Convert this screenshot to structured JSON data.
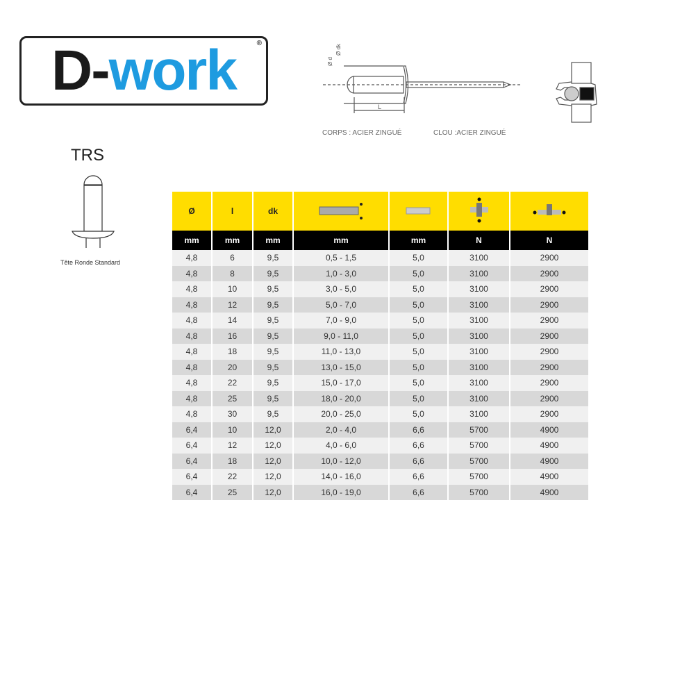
{
  "logo": {
    "text_dark": "D-",
    "text_blue": "work",
    "registered": "®"
  },
  "drawing": {
    "label_d": "Ø d",
    "label_dk": "Ø dk",
    "label_L": "L",
    "body_material": "CORPS : ACIER ZINGUÉ",
    "mandrel_material": "CLOU :ACIER ZINGUÉ"
  },
  "product": {
    "code": "TRS",
    "caption": "Tête Ronde Standard"
  },
  "table": {
    "headers": [
      "Ø",
      "l",
      "dk",
      "grip-range-icon",
      "drill-icon",
      "shear-strength-icon",
      "tensile-strength-icon"
    ],
    "units": [
      "mm",
      "mm",
      "mm",
      "mm",
      "mm",
      "N",
      "N"
    ],
    "colors": {
      "header": "#ffdd00",
      "units": "#000000"
    },
    "rows": [
      [
        "4,8",
        "6",
        "9,5",
        "0,5 - 1,5",
        "5,0",
        "3100",
        "2900"
      ],
      [
        "4,8",
        "8",
        "9,5",
        "1,0 - 3,0",
        "5,0",
        "3100",
        "2900"
      ],
      [
        "4,8",
        "10",
        "9,5",
        "3,0 - 5,0",
        "5,0",
        "3100",
        "2900"
      ],
      [
        "4,8",
        "12",
        "9,5",
        "5,0 - 7,0",
        "5,0",
        "3100",
        "2900"
      ],
      [
        "4,8",
        "14",
        "9,5",
        "7,0 - 9,0",
        "5,0",
        "3100",
        "2900"
      ],
      [
        "4,8",
        "16",
        "9,5",
        "9,0 - 11,0",
        "5,0",
        "3100",
        "2900"
      ],
      [
        "4,8",
        "18",
        "9,5",
        "11,0 - 13,0",
        "5,0",
        "3100",
        "2900"
      ],
      [
        "4,8",
        "20",
        "9,5",
        "13,0 - 15,0",
        "5,0",
        "3100",
        "2900"
      ],
      [
        "4,8",
        "22",
        "9,5",
        "15,0 - 17,0",
        "5,0",
        "3100",
        "2900"
      ],
      [
        "4,8",
        "25",
        "9,5",
        "18,0 - 20,0",
        "5,0",
        "3100",
        "2900"
      ],
      [
        "4,8",
        "30",
        "9,5",
        "20,0 - 25,0",
        "5,0",
        "3100",
        "2900"
      ],
      [
        "6,4",
        "10",
        "12,0",
        "2,0 - 4,0",
        "6,6",
        "5700",
        "4900"
      ],
      [
        "6,4",
        "12",
        "12,0",
        "4,0 - 6,0",
        "6,6",
        "5700",
        "4900"
      ],
      [
        "6,4",
        "18",
        "12,0",
        "10,0 - 12,0",
        "6,6",
        "5700",
        "4900"
      ],
      [
        "6,4",
        "22",
        "12,0",
        "14,0 - 16,0",
        "6,6",
        "5700",
        "4900"
      ],
      [
        "6,4",
        "25",
        "12,0",
        "16,0 - 19,0",
        "6,6",
        "5700",
        "4900"
      ]
    ]
  }
}
